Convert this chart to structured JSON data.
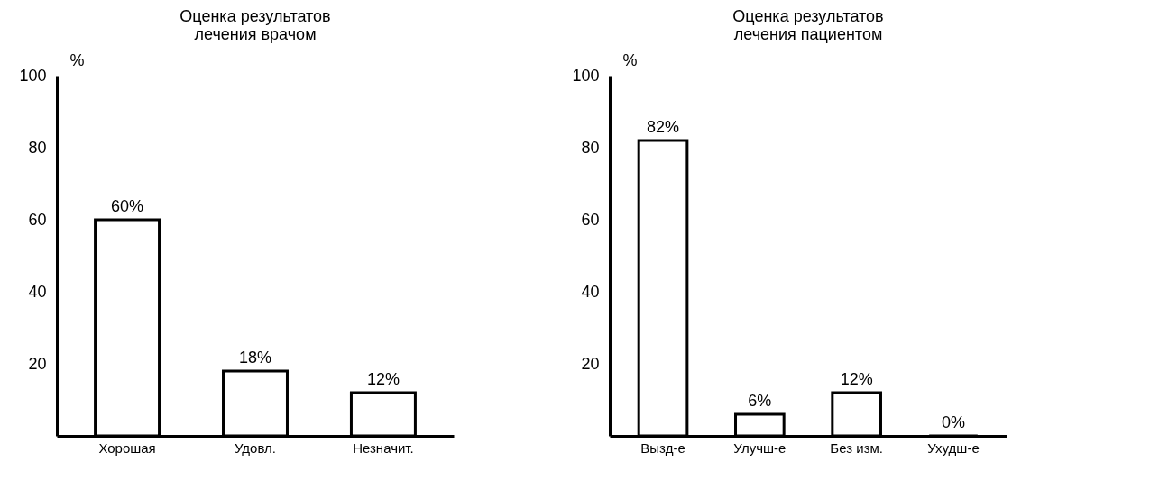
{
  "chart_data": [
    {
      "type": "bar",
      "title": "Оценка результатов\nлечения врачом",
      "ylabel": "%",
      "categories": [
        "Хорошая",
        "Удовл.",
        "Незначит."
      ],
      "values": [
        60,
        18,
        12
      ],
      "value_labels": [
        "60%",
        "18%",
        "12%"
      ],
      "color": "#ffffff",
      "ylim": [
        0,
        100
      ],
      "yticks": [
        20,
        40,
        60,
        80,
        100
      ]
    },
    {
      "type": "bar",
      "title": "Оценка результатов\nлечения пациентом",
      "ylabel": "%",
      "categories": [
        "Вызд-е",
        "Улучш-е",
        "Без изм.",
        "Ухудш-е"
      ],
      "values": [
        82,
        6,
        12,
        0
      ],
      "value_labels": [
        "82%",
        "6%",
        "12%",
        "0%"
      ],
      "color": "#ffffff",
      "ylim": [
        0,
        100
      ],
      "yticks": [
        20,
        40,
        60,
        80,
        100
      ]
    }
  ]
}
